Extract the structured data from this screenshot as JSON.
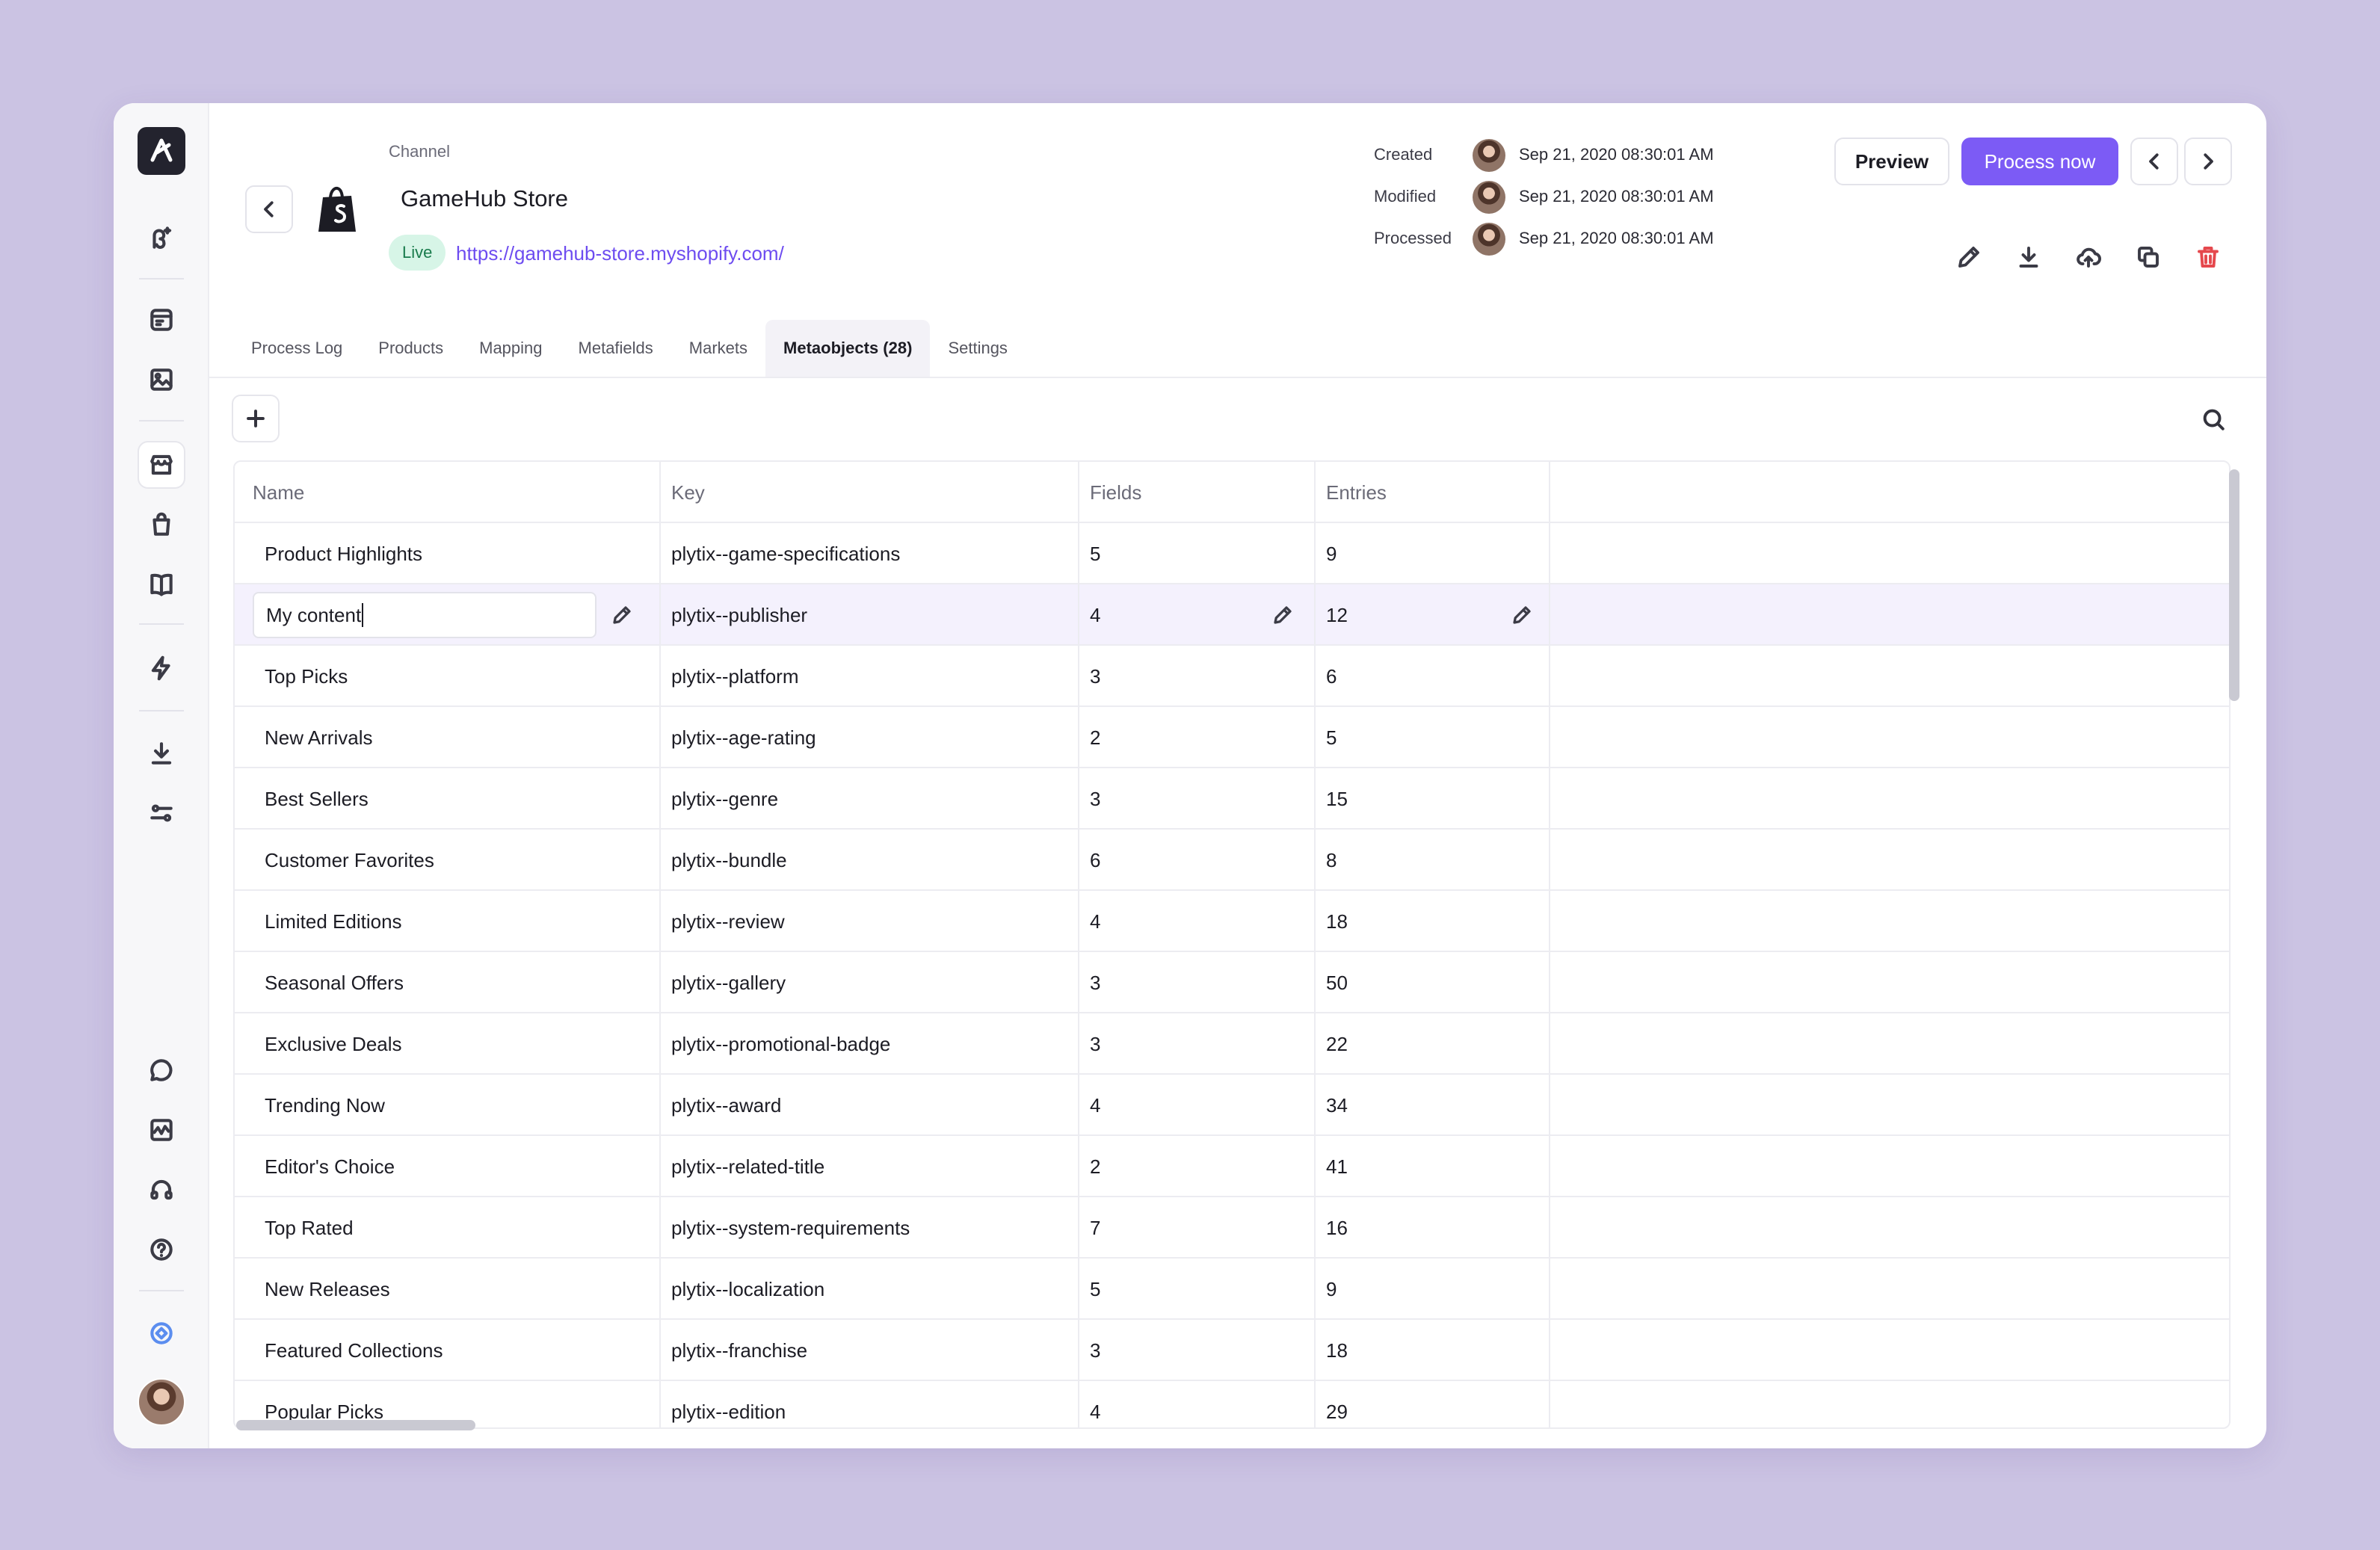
{
  "header": {
    "channel_label": "Channel",
    "store_name": "GameHub Store",
    "status": "Live",
    "url": "https://gamehub-store.myshopify.com/"
  },
  "meta": [
    {
      "label": "Created",
      "date": "Sep 21, 2020  08:30:01 AM"
    },
    {
      "label": "Modified",
      "date": "Sep 21, 2020  08:30:01 AM"
    },
    {
      "label": "Processed",
      "date": "Sep 21, 2020  08:30:01 AM"
    }
  ],
  "actions": {
    "preview": "Preview",
    "process_now": "Process now"
  },
  "tabs": [
    "Process Log",
    "Products",
    "Mapping",
    "Metafields",
    "Markets",
    "Metaobjects (28)",
    "Settings"
  ],
  "active_tab": 5,
  "table": {
    "columns": [
      "Name",
      "Key",
      "Fields",
      "Entries"
    ],
    "rows": [
      {
        "name": "Product Highlights",
        "key": "plytix--game-specifications",
        "fields": "5",
        "entries": "9"
      },
      {
        "name": "My content",
        "key": "plytix--publisher",
        "fields": "4",
        "entries": "12"
      },
      {
        "name": "Top Picks",
        "key": "plytix--platform",
        "fields": "3",
        "entries": "6"
      },
      {
        "name": "New Arrivals",
        "key": "plytix--age-rating",
        "fields": "2",
        "entries": "5"
      },
      {
        "name": "Best Sellers",
        "key": "plytix--genre",
        "fields": "3",
        "entries": "15"
      },
      {
        "name": "Customer Favorites",
        "key": "plytix--bundle",
        "fields": "6",
        "entries": "8"
      },
      {
        "name": "Limited Editions",
        "key": "plytix--review",
        "fields": "4",
        "entries": "18"
      },
      {
        "name": "Seasonal Offers",
        "key": "plytix--gallery",
        "fields": "3",
        "entries": "50"
      },
      {
        "name": "Exclusive Deals",
        "key": "plytix--promotional-badge",
        "fields": "3",
        "entries": "22"
      },
      {
        "name": "Trending Now",
        "key": "plytix--award",
        "fields": "4",
        "entries": "34"
      },
      {
        "name": "Editor's Choice",
        "key": "plytix--related-title",
        "fields": "2",
        "entries": "41"
      },
      {
        "name": "Top Rated",
        "key": "plytix--system-requirements",
        "fields": "7",
        "entries": "16"
      },
      {
        "name": "New Releases",
        "key": "plytix--localization",
        "fields": "5",
        "entries": "9"
      },
      {
        "name": "Featured Collections",
        "key": "plytix--franchise",
        "fields": "3",
        "entries": "18"
      },
      {
        "name": "Popular Picks",
        "key": "plytix--edition",
        "fields": "4",
        "entries": "29"
      }
    ]
  },
  "colors": {
    "accent": "#7c5bf5",
    "background": "#cbc3e3",
    "live_bg": "#d7f5e7",
    "danger": "#e5484d"
  }
}
